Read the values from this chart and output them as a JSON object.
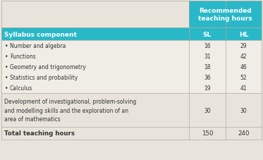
{
  "header_bg": "#29b8c8",
  "header_text_color": "#ffffff",
  "row_bg_light": "#e8e4dc",
  "row_bg_white": "#f0ede6",
  "border_color": "#b0aba0",
  "text_color": "#333333",
  "title_line1": "Recommended",
  "title_line2": "teaching hours",
  "col_header_sl": "SL",
  "col_header_hl": "HL",
  "syllabus_label": "Syllabus component",
  "bullet_rows": [
    {
      "label": "Number and algebra",
      "sl": "16",
      "hl": "29"
    },
    {
      "label": "Functions",
      "sl": "31",
      "hl": "42"
    },
    {
      "label": "Geometry and trigonometry",
      "sl": "18",
      "hl": "46"
    },
    {
      "label": "Statistics and probability",
      "sl": "36",
      "hl": "52"
    },
    {
      "label": "Calculus",
      "sl": "19",
      "hl": "41"
    }
  ],
  "dev_row": {
    "label": "Development of investigational, problem-solving\nand modelling skills and the exploration of an\narea of mathematics",
    "sl": "30",
    "hl": "30"
  },
  "total_row": {
    "label": "Total teaching hours",
    "sl": "150",
    "hl": "240"
  },
  "figsize": [
    3.73,
    2.28
  ],
  "dpi": 100
}
